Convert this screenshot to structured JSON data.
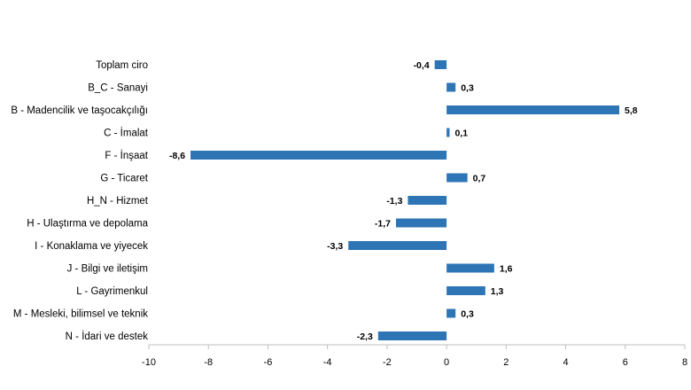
{
  "chart_data": {
    "type": "bar",
    "orientation": "horizontal",
    "title": "",
    "xlabel": "",
    "ylabel": "",
    "categories": [
      "Toplam ciro",
      "B_C - Sanayi",
      "B - Madencilik ve taşocakçılığı",
      "C - İmalat",
      "F - İnşaat",
      "G - Ticaret",
      "H_N - Hizmet",
      "H - Ulaştırma ve depolama",
      "I - Konaklama ve yiyecek",
      "J - Bilgi ve iletişim",
      "L - Gayrimenkul",
      "M - Mesleki, bilimsel ve teknik",
      "N - İdari ve destek"
    ],
    "values": [
      -0.4,
      0.3,
      5.8,
      0.1,
      -8.6,
      0.7,
      -1.3,
      -1.7,
      -3.3,
      1.6,
      1.3,
      0.3,
      -2.3
    ],
    "value_labels": [
      "-0,4",
      "0,3",
      "5,8",
      "0,1",
      "-8,6",
      "0,7",
      "-1,3",
      "-1,7",
      "-3,3",
      "1,6",
      "1,3",
      "0,3",
      "-2,3"
    ],
    "xlim": [
      -10,
      8
    ],
    "xticks": [
      -10,
      -8,
      -6,
      -4,
      -2,
      0,
      2,
      4,
      6,
      8
    ],
    "xtick_labels": [
      "-10",
      "-8",
      "-6",
      "-4",
      "-2",
      "0",
      "2",
      "4",
      "6",
      "8"
    ],
    "grid": false,
    "legend": "none",
    "colors": {
      "bar": "#2e75b6",
      "axis": "#bfbfbf",
      "text": "#000000"
    }
  }
}
